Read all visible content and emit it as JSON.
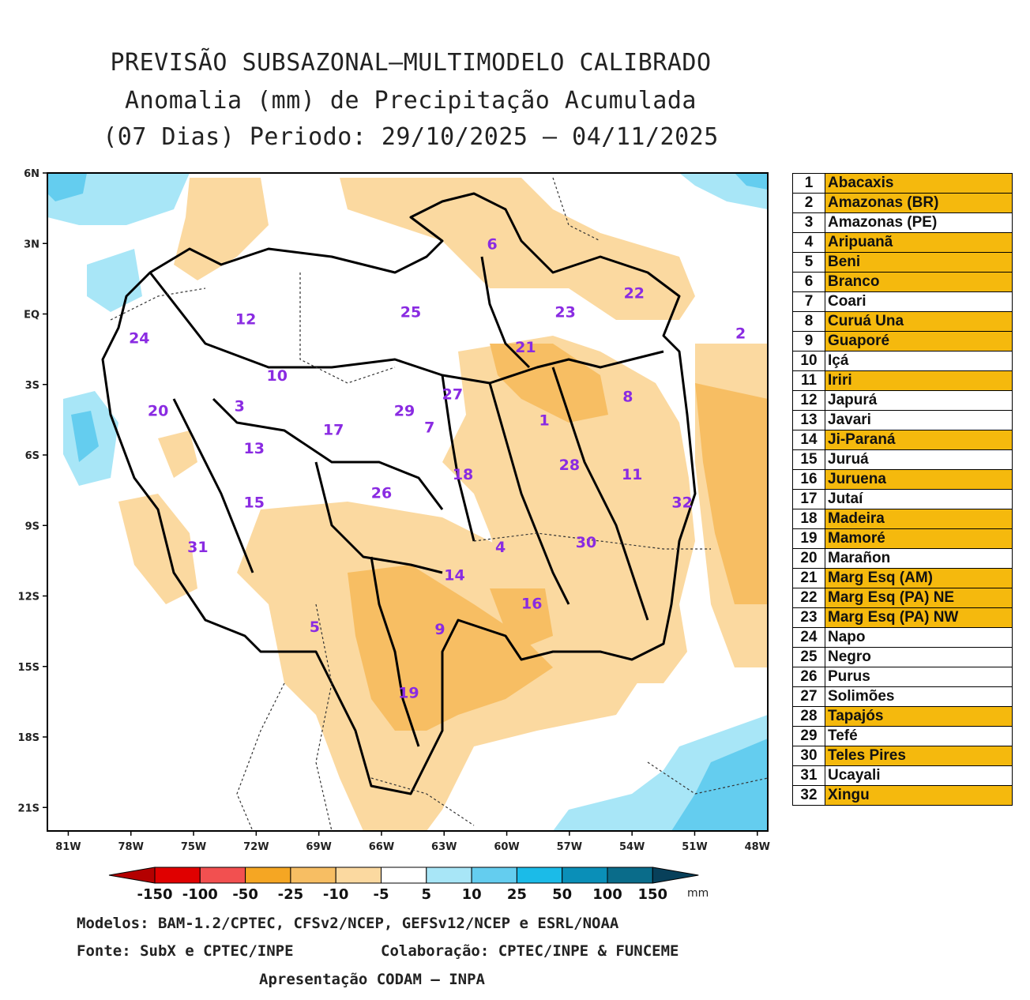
{
  "title": {
    "line1": "PREVISÃO SUBSAZONAL—MULTIMODELO CALIBRADO",
    "line2": "Anomalia (mm) de Precipitação Acumulada",
    "line3": "(07 Dias) Periodo: 29/10/2025 — 04/11/2025"
  },
  "map": {
    "lat_labels": [
      "6N",
      "3N",
      "EQ",
      "3S",
      "6S",
      "9S",
      "12S",
      "15S",
      "18S",
      "21S"
    ],
    "lon_labels": [
      "81W",
      "78W",
      "75W",
      "72W",
      "69W",
      "66W",
      "63W",
      "60W",
      "57W",
      "54W",
      "51W",
      "48W"
    ],
    "lon_range": [
      -82,
      -47.5
    ],
    "lat_range": [
      -22,
      6
    ],
    "basin_labels": [
      {
        "id": "1",
        "lon": -58.2,
        "lat": -4.5
      },
      {
        "id": "2",
        "lon": -48.8,
        "lat": -0.8
      },
      {
        "id": "3",
        "lon": -72.8,
        "lat": -3.9
      },
      {
        "id": "4",
        "lon": -60.3,
        "lat": -9.9
      },
      {
        "id": "5",
        "lon": -69.2,
        "lat": -13.3
      },
      {
        "id": "6",
        "lon": -60.7,
        "lat": 3.0
      },
      {
        "id": "7",
        "lon": -63.7,
        "lat": -4.8
      },
      {
        "id": "8",
        "lon": -54.2,
        "lat": -3.5
      },
      {
        "id": "9",
        "lon": -63.2,
        "lat": -13.4
      },
      {
        "id": "10",
        "lon": -71.0,
        "lat": -2.6
      },
      {
        "id": "11",
        "lon": -54.0,
        "lat": -6.8
      },
      {
        "id": "12",
        "lon": -72.5,
        "lat": -0.2
      },
      {
        "id": "13",
        "lon": -72.1,
        "lat": -5.7
      },
      {
        "id": "14",
        "lon": -62.5,
        "lat": -11.1
      },
      {
        "id": "15",
        "lon": -72.1,
        "lat": -8.0
      },
      {
        "id": "16",
        "lon": -58.8,
        "lat": -12.3
      },
      {
        "id": "17",
        "lon": -68.3,
        "lat": -4.9
      },
      {
        "id": "18",
        "lon": -62.1,
        "lat": -6.8
      },
      {
        "id": "19",
        "lon": -64.7,
        "lat": -16.1
      },
      {
        "id": "20",
        "lon": -76.7,
        "lat": -4.1
      },
      {
        "id": "21",
        "lon": -59.1,
        "lat": -1.4
      },
      {
        "id": "22",
        "lon": -53.9,
        "lat": 0.9
      },
      {
        "id": "23",
        "lon": -57.2,
        "lat": 0.1
      },
      {
        "id": "24",
        "lon": -77.6,
        "lat": -1.0
      },
      {
        "id": "25",
        "lon": -64.6,
        "lat": 0.1
      },
      {
        "id": "26",
        "lon": -66.0,
        "lat": -7.6
      },
      {
        "id": "27",
        "lon": -62.6,
        "lat": -3.4
      },
      {
        "id": "28",
        "lon": -57.0,
        "lat": -6.4
      },
      {
        "id": "29",
        "lon": -64.9,
        "lat": -4.1
      },
      {
        "id": "30",
        "lon": -56.2,
        "lat": -9.7
      },
      {
        "id": "31",
        "lon": -74.8,
        "lat": -9.9
      },
      {
        "id": "32",
        "lon": -51.6,
        "lat": -8.0
      }
    ]
  },
  "basins": [
    {
      "num": "1",
      "name": "Abacaxis",
      "highlight": true
    },
    {
      "num": "2",
      "name": "Amazonas (BR)",
      "highlight": true
    },
    {
      "num": "3",
      "name": "Amazonas (PE)",
      "highlight": false
    },
    {
      "num": "4",
      "name": "Aripuanã",
      "highlight": true
    },
    {
      "num": "5",
      "name": "Beni",
      "highlight": true
    },
    {
      "num": "6",
      "name": "Branco",
      "highlight": true
    },
    {
      "num": "7",
      "name": "Coari",
      "highlight": false
    },
    {
      "num": "8",
      "name": "Curuá Una",
      "highlight": true
    },
    {
      "num": "9",
      "name": "Guaporé",
      "highlight": true
    },
    {
      "num": "10",
      "name": "Içá",
      "highlight": false
    },
    {
      "num": "11",
      "name": "Iriri",
      "highlight": true
    },
    {
      "num": "12",
      "name": "Japurá",
      "highlight": false
    },
    {
      "num": "13",
      "name": "Javari",
      "highlight": false
    },
    {
      "num": "14",
      "name": "Ji-Paraná",
      "highlight": true
    },
    {
      "num": "15",
      "name": "Juruá",
      "highlight": false
    },
    {
      "num": "16",
      "name": "Juruena",
      "highlight": true
    },
    {
      "num": "17",
      "name": "Jutaí",
      "highlight": false
    },
    {
      "num": "18",
      "name": "Madeira",
      "highlight": true
    },
    {
      "num": "19",
      "name": "Mamoré",
      "highlight": true
    },
    {
      "num": "20",
      "name": "Marañon",
      "highlight": false
    },
    {
      "num": "21",
      "name": "Marg Esq (AM)",
      "highlight": true
    },
    {
      "num": "22",
      "name": "Marg Esq (PA) NE",
      "highlight": true
    },
    {
      "num": "23",
      "name": "Marg Esq (PA) NW",
      "highlight": true
    },
    {
      "num": "24",
      "name": "Napo",
      "highlight": false
    },
    {
      "num": "25",
      "name": "Negro",
      "highlight": false
    },
    {
      "num": "26",
      "name": "Purus",
      "highlight": false
    },
    {
      "num": "27",
      "name": "Solimões",
      "highlight": false
    },
    {
      "num": "28",
      "name": "Tapajós",
      "highlight": true
    },
    {
      "num": "29",
      "name": "Tefé",
      "highlight": false
    },
    {
      "num": "30",
      "name": "Teles Pires",
      "highlight": true
    },
    {
      "num": "31",
      "name": "Ucayali",
      "highlight": false
    },
    {
      "num": "32",
      "name": "Xingu",
      "highlight": true
    }
  ],
  "colorbar": {
    "labels": [
      "-150",
      "-100",
      "-50",
      "-25",
      "-10",
      "-5",
      "5",
      "10",
      "25",
      "50",
      "100",
      "150"
    ],
    "unit": "mm",
    "colors": [
      "#e00000",
      "#f25050",
      "#f5a623",
      "#f7be63",
      "#fbd9a0",
      "#ffffff",
      "#a8e6f7",
      "#64cdef",
      "#1bbbe8",
      "#0a8fb8",
      "#0a6c8a"
    ],
    "under_color": "#b40000",
    "over_color": "#08405a"
  },
  "credits": {
    "models": "Modelos: BAM-1.2/CPTEC, CFSv2/NCEP, GEFSv12/NCEP e ESRL/NOAA",
    "source": "Fonte: SubX e CPTEC/INPE",
    "collab": "Colaboração: CPTEC/INPE & FUNCEME",
    "presentation": "Apresentação CODAM – INPA"
  }
}
